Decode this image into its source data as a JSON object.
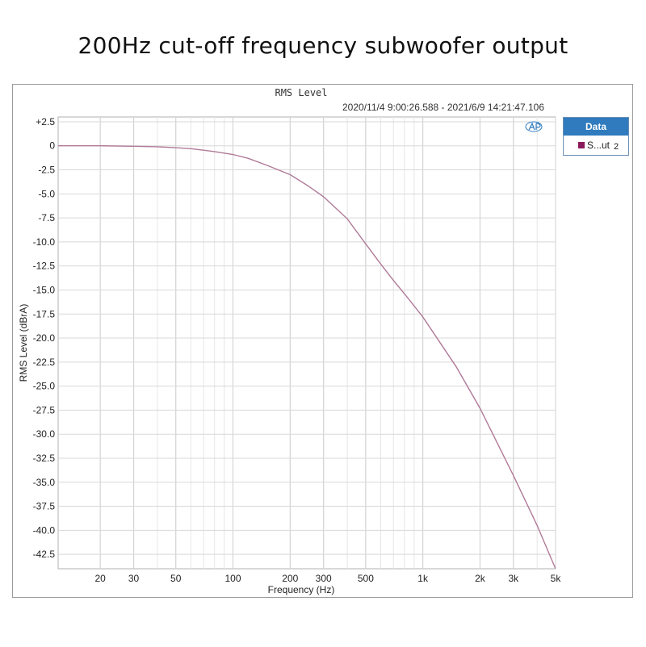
{
  "page": {
    "title": "200Hz cut-off frequency subwoofer output"
  },
  "legend": {
    "header": "Data",
    "entries": [
      {
        "label": "S...ut",
        "suffix": "2",
        "color": "#8b1a5a"
      }
    ]
  },
  "chart_data": {
    "type": "line",
    "title": "RMS Level",
    "subtitle": "2020/11/4 9:00:26.588 - 2021/6/9 14:21:47.106",
    "xlabel": "Frequency (Hz)",
    "ylabel": "RMS Level (dBrA)",
    "xscale": "log",
    "xlim": [
      12,
      5000
    ],
    "ylim": [
      -44,
      3
    ],
    "grid": true,
    "x_ticks": [
      {
        "value": 20,
        "label": "20"
      },
      {
        "value": 30,
        "label": "30"
      },
      {
        "value": 50,
        "label": "50"
      },
      {
        "value": 100,
        "label": "100"
      },
      {
        "value": 200,
        "label": "200"
      },
      {
        "value": 300,
        "label": "300"
      },
      {
        "value": 500,
        "label": "500"
      },
      {
        "value": 1000,
        "label": "1k"
      },
      {
        "value": 2000,
        "label": "2k"
      },
      {
        "value": 3000,
        "label": "3k"
      },
      {
        "value": 5000,
        "label": "5k"
      }
    ],
    "y_ticks": [
      {
        "value": 2.5,
        "label": "+2.5"
      },
      {
        "value": 0,
        "label": "0"
      },
      {
        "value": -2.5,
        "label": "-2.5"
      },
      {
        "value": -5,
        "label": "-5.0"
      },
      {
        "value": -7.5,
        "label": "-7.5"
      },
      {
        "value": -10,
        "label": "-10.0"
      },
      {
        "value": -12.5,
        "label": "-12.5"
      },
      {
        "value": -15,
        "label": "-15.0"
      },
      {
        "value": -17.5,
        "label": "-17.5"
      },
      {
        "value": -20,
        "label": "-20.0"
      },
      {
        "value": -22.5,
        "label": "-22.5"
      },
      {
        "value": -25,
        "label": "-25.0"
      },
      {
        "value": -27.5,
        "label": "-27.5"
      },
      {
        "value": -30,
        "label": "-30.0"
      },
      {
        "value": -32.5,
        "label": "-32.5"
      },
      {
        "value": -35,
        "label": "-35.0"
      },
      {
        "value": -37.5,
        "label": "-37.5"
      },
      {
        "value": -40,
        "label": "-40.0"
      },
      {
        "value": -42.5,
        "label": "-42.5"
      }
    ],
    "series": [
      {
        "name": "S...ut 2",
        "color": "#b07a98",
        "x": [
          12,
          20,
          30,
          40,
          50,
          60,
          80,
          100,
          120,
          150,
          200,
          250,
          300,
          400,
          500,
          600,
          700,
          800,
          1000,
          1500,
          2000,
          3000,
          4000,
          5000
        ],
        "y": [
          0,
          0,
          -0.05,
          -0.1,
          -0.2,
          -0.3,
          -0.6,
          -0.9,
          -1.3,
          -2.0,
          -3.0,
          -4.2,
          -5.3,
          -7.6,
          -10.2,
          -12.3,
          -14.0,
          -15.4,
          -17.8,
          -23.0,
          -27.3,
          -34.3,
          -39.5,
          -44.0
        ]
      }
    ],
    "logo": "ap-logo"
  }
}
